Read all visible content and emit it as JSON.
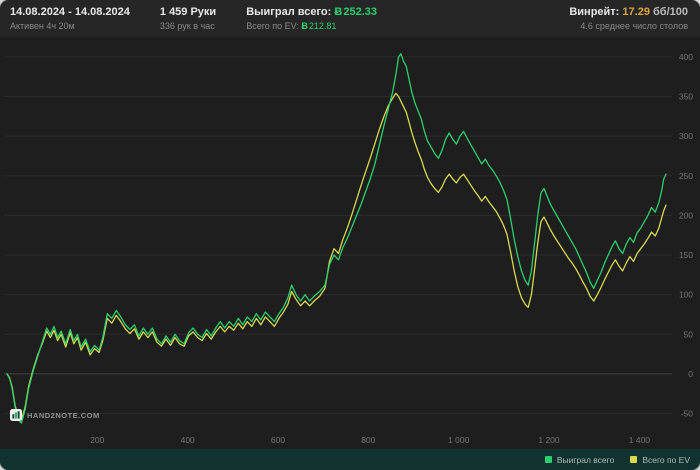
{
  "colors": {
    "green": "#2ad06e",
    "yellow": "#d9d84f",
    "orange": "#dfa440",
    "header_bg": "#262626",
    "chart_bg": "#1e1e1e",
    "footer_bg": "#11332f"
  },
  "icons": {
    "bigblind": "Ƀ"
  },
  "header": {
    "date_range": "14.08.2024 - 14.08.2024",
    "active_time": "Активен 4ч 20м",
    "hands": "1 459 Руки",
    "hands_per_hour": "336 рук в час",
    "won_label": "Выиграл всего:",
    "won_value": "252.33",
    "ev_label": "Всего по EV:",
    "ev_value": "212.81",
    "winrate_label": "Винрейт:",
    "winrate_value": "17.29",
    "winrate_unit": "бб/100",
    "avg_tables": "4.6 среднее число столов"
  },
  "footer": {
    "logo_text": "HAND2NOTE.COM",
    "legend": [
      {
        "label": "Выиграл всего",
        "color": "#2ad06e"
      },
      {
        "label": "Всего по EV",
        "color": "#d9d84f"
      }
    ]
  },
  "chart_data": {
    "type": "line",
    "title": "",
    "xlabel": "",
    "ylabel": "",
    "xlim": [
      0,
      1459
    ],
    "ylim": [
      -72,
      415
    ],
    "grid": true,
    "legend_position": "bottom-right",
    "xticks": [
      200,
      400,
      600,
      800,
      1000,
      1200,
      1400
    ],
    "xtick_labels": [
      "200",
      "400",
      "600",
      "800",
      "1 000",
      "1 200",
      "1 400"
    ],
    "yticks": [
      -50,
      0,
      50,
      100,
      150,
      200,
      250,
      300,
      350,
      400
    ],
    "final_values": {
      "won": 252.33,
      "ev": 212.81
    },
    "x": [
      0,
      6,
      12,
      18,
      25,
      32,
      40,
      48,
      58,
      68,
      78,
      88,
      96,
      104,
      112,
      120,
      130,
      140,
      148,
      156,
      164,
      174,
      184,
      194,
      204,
      212,
      222,
      232,
      242,
      252,
      262,
      272,
      282,
      292,
      302,
      312,
      322,
      332,
      342,
      352,
      362,
      372,
      382,
      392,
      402,
      412,
      422,
      432,
      442,
      452,
      462,
      472,
      482,
      492,
      502,
      512,
      522,
      532,
      542,
      552,
      562,
      572,
      582,
      592,
      602,
      612,
      622,
      630,
      640,
      650,
      660,
      670,
      680,
      692,
      704,
      714,
      724,
      734,
      744,
      754,
      764,
      774,
      784,
      794,
      804,
      814,
      824,
      834,
      844,
      854,
      861,
      867,
      872,
      878,
      884,
      890,
      896,
      903,
      910,
      917,
      924,
      931,
      939,
      947,
      955,
      963,
      971,
      979,
      987,
      995,
      1003,
      1011,
      1019,
      1027,
      1035,
      1043,
      1051,
      1059,
      1067,
      1075,
      1083,
      1091,
      1099,
      1107,
      1115,
      1123,
      1131,
      1139,
      1147,
      1154,
      1161,
      1168,
      1175,
      1182,
      1189,
      1196,
      1203,
      1211,
      1219,
      1227,
      1235,
      1243,
      1251,
      1259,
      1267,
      1275,
      1283,
      1291,
      1299,
      1307,
      1315,
      1323,
      1331,
      1339,
      1347,
      1355,
      1363,
      1371,
      1379,
      1387,
      1395,
      1403,
      1411,
      1419,
      1427,
      1435,
      1443,
      1449,
      1454,
      1459
    ],
    "series": [
      {
        "name": "Выиграл всего",
        "color": "#2ad06e",
        "values": [
          0,
          -6,
          -20,
          -42,
          -58,
          -62,
          -45,
          -18,
          4,
          22,
          40,
          58,
          50,
          60,
          46,
          54,
          38,
          56,
          42,
          50,
          34,
          44,
          28,
          36,
          30,
          46,
          76,
          70,
          80,
          72,
          62,
          56,
          62,
          48,
          58,
          50,
          58,
          44,
          38,
          48,
          40,
          50,
          42,
          38,
          52,
          58,
          50,
          46,
          56,
          48,
          58,
          66,
          58,
          66,
          60,
          70,
          62,
          72,
          66,
          76,
          68,
          78,
          72,
          66,
          76,
          84,
          96,
          112,
          100,
          92,
          100,
          92,
          98,
          104,
          112,
          138,
          150,
          144,
          160,
          172,
          186,
          200,
          214,
          230,
          246,
          264,
          288,
          312,
          334,
          356,
          378,
          400,
          404,
          394,
          388,
          372,
          356,
          342,
          332,
          322,
          306,
          294,
          286,
          278,
          272,
          282,
          296,
          304,
          296,
          290,
          300,
          306,
          297,
          289,
          281,
          273,
          265,
          271,
          263,
          257,
          250,
          242,
          232,
          220,
          196,
          170,
          148,
          130,
          118,
          112,
          130,
          165,
          200,
          228,
          234,
          224,
          214,
          206,
          198,
          190,
          182,
          174,
          166,
          158,
          148,
          138,
          128,
          116,
          108,
          118,
          128,
          140,
          150,
          160,
          168,
          158,
          152,
          164,
          172,
          166,
          178,
          184,
          192,
          200,
          210,
          204,
          216,
          230,
          246,
          252
        ]
      },
      {
        "name": "Всего по EV",
        "color": "#d9d84f",
        "values": [
          0,
          -5,
          -18,
          -40,
          -54,
          -58,
          -42,
          -15,
          6,
          24,
          38,
          54,
          46,
          55,
          42,
          50,
          34,
          52,
          38,
          46,
          30,
          40,
          24,
          32,
          27,
          42,
          70,
          64,
          74,
          66,
          57,
          51,
          57,
          44,
          53,
          46,
          53,
          40,
          35,
          44,
          36,
          46,
          38,
          35,
          48,
          53,
          46,
          42,
          51,
          44,
          53,
          60,
          53,
          60,
          55,
          64,
          57,
          66,
          60,
          70,
          62,
          72,
          66,
          60,
          70,
          78,
          88,
          104,
          94,
          86,
          92,
          86,
          92,
          98,
          108,
          142,
          158,
          152,
          170,
          185,
          202,
          220,
          238,
          255,
          272,
          290,
          308,
          324,
          338,
          348,
          354,
          350,
          344,
          337,
          330,
          318,
          305,
          292,
          281,
          271,
          258,
          248,
          240,
          234,
          229,
          236,
          246,
          252,
          246,
          241,
          248,
          252,
          245,
          238,
          231,
          225,
          218,
          224,
          217,
          211,
          205,
          197,
          188,
          176,
          154,
          130,
          110,
          96,
          88,
          84,
          100,
          132,
          165,
          192,
          198,
          190,
          182,
          174,
          167,
          160,
          153,
          146,
          140,
          133,
          125,
          116,
          108,
          98,
          92,
          100,
          109,
          119,
          128,
          137,
          144,
          136,
          130,
          140,
          148,
          142,
          152,
          158,
          164,
          171,
          179,
          174,
          184,
          196,
          206,
          213
        ]
      }
    ]
  }
}
